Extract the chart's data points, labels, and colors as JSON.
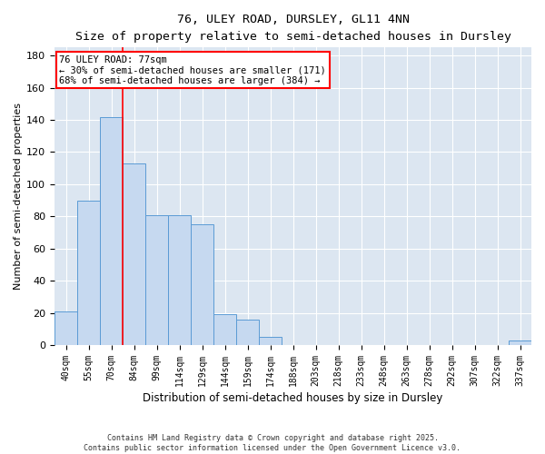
{
  "title_line1": "76, ULEY ROAD, DURSLEY, GL11 4NN",
  "title_line2": "Size of property relative to semi-detached houses in Dursley",
  "xlabel": "Distribution of semi-detached houses by size in Dursley",
  "ylabel": "Number of semi-detached properties",
  "categories": [
    "40sqm",
    "55sqm",
    "70sqm",
    "84sqm",
    "99sqm",
    "114sqm",
    "129sqm",
    "144sqm",
    "159sqm",
    "174sqm",
    "188sqm",
    "203sqm",
    "218sqm",
    "233sqm",
    "248sqm",
    "263sqm",
    "278sqm",
    "292sqm",
    "307sqm",
    "322sqm",
    "337sqm"
  ],
  "values": [
    21,
    90,
    142,
    113,
    81,
    81,
    75,
    19,
    16,
    5,
    0,
    0,
    0,
    0,
    0,
    0,
    0,
    0,
    0,
    0,
    3
  ],
  "bar_color": "#c6d9f0",
  "bar_edge_color": "#5b9bd5",
  "red_line_x": 2.5,
  "annotation_text_line1": "76 ULEY ROAD: 77sqm",
  "annotation_text_line2": "← 30% of semi-detached houses are smaller (171)",
  "annotation_text_line3": "68% of semi-detached houses are larger (384) →",
  "ylim": [
    0,
    185
  ],
  "yticks": [
    0,
    20,
    40,
    60,
    80,
    100,
    120,
    140,
    160,
    180
  ],
  "plot_bg_color": "#dce6f1",
  "footer_line1": "Contains HM Land Registry data © Crown copyright and database right 2025.",
  "footer_line2": "Contains public sector information licensed under the Open Government Licence v3.0."
}
